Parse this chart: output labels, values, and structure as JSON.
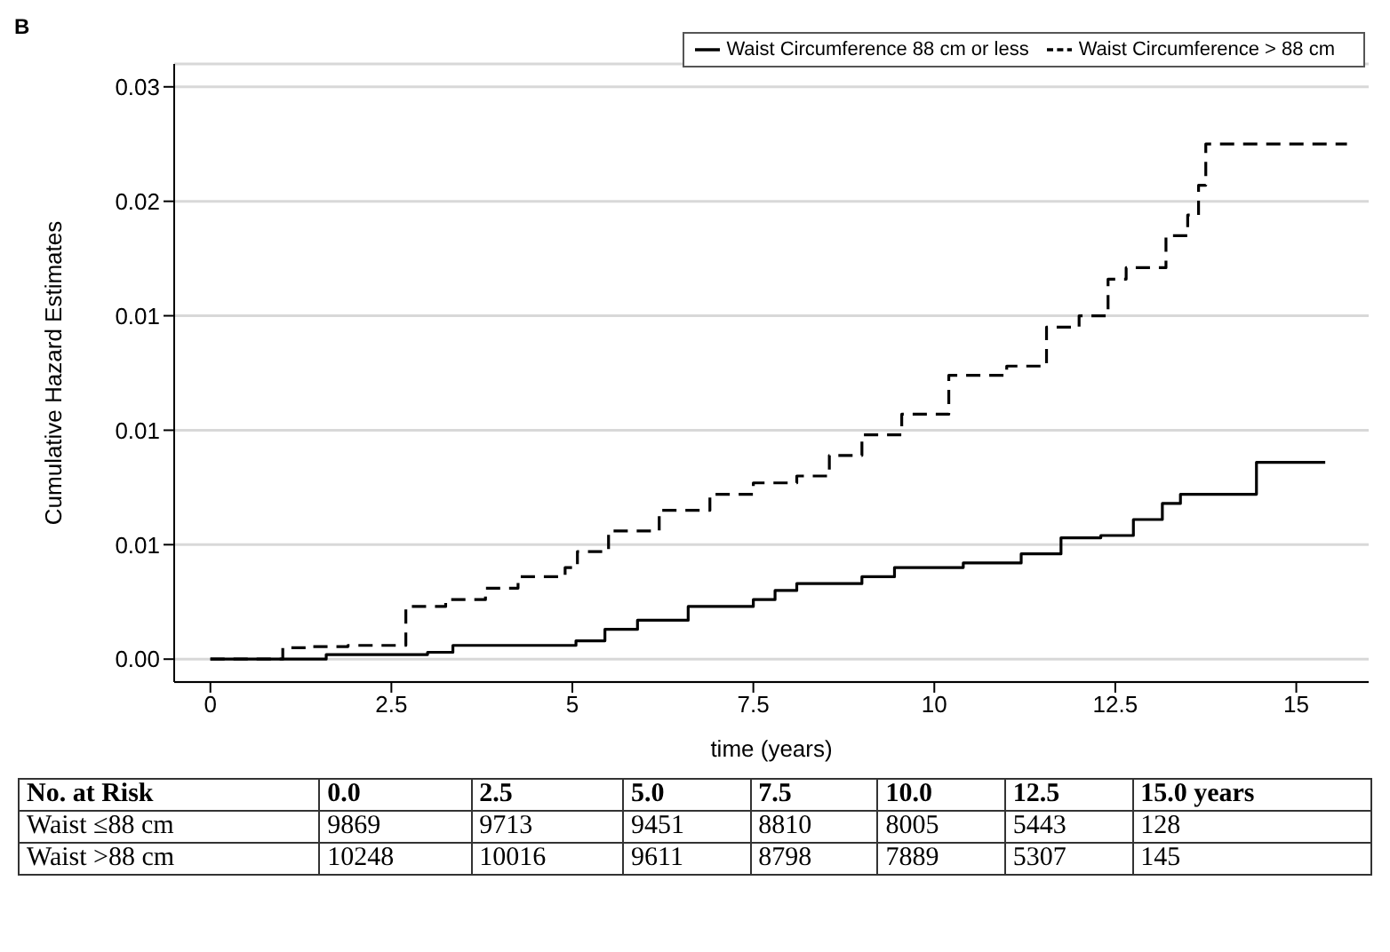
{
  "chart_data": {
    "type": "step",
    "title": "B",
    "xlabel": "time (years)",
    "ylabel": "Cumulative Hazard Estimates",
    "xlim": [
      -0.5,
      16
    ],
    "xticks": [
      0,
      2.5,
      5,
      7.5,
      10,
      12.5,
      15
    ],
    "ylim": [
      -0.001,
      0.026
    ],
    "yticks": [
      {
        "value": 0,
        "label": "0.00"
      },
      {
        "value": 0.005,
        "label": "0.01"
      },
      {
        "value": 0.01,
        "label": "0.01"
      },
      {
        "value": 0.015,
        "label": "0.01"
      },
      {
        "value": 0.02,
        "label": "0.02"
      },
      {
        "value": 0.025,
        "label": "0.03"
      }
    ],
    "grid": "y",
    "legend": "top",
    "marker": "none",
    "series": [
      {
        "name": "Waist Circumference 88 cm or less",
        "color": "#000000",
        "line_style": "solid",
        "x": [
          0,
          0.5,
          1.6,
          3.0,
          3.35,
          5.05,
          5.45,
          5.9,
          6.6,
          7.5,
          7.8,
          8.1,
          9.0,
          9.45,
          10.4,
          11.2,
          11.75,
          12.3,
          12.75,
          13.15,
          13.4,
          14.45,
          15.4
        ],
        "values": [
          0,
          0,
          0.0002,
          0.0003,
          0.0006,
          0.0008,
          0.0013,
          0.0017,
          0.0023,
          0.0026,
          0.003,
          0.0033,
          0.0036,
          0.004,
          0.0042,
          0.0046,
          0.0053,
          0.0054,
          0.0061,
          0.0068,
          0.0072,
          0.0086,
          0.0086
        ]
      },
      {
        "name": "Waist Circumference > 88 cm",
        "color": "#000000",
        "line_style": "dashed",
        "x": [
          0,
          0.5,
          1.0,
          1.4,
          1.9,
          2.7,
          3.25,
          3.8,
          4.25,
          4.9,
          5.07,
          5.5,
          6.2,
          6.9,
          7.5,
          8.1,
          8.55,
          9.0,
          9.55,
          10.2,
          11.0,
          11.55,
          12.0,
          12.4,
          12.65,
          13.2,
          13.5,
          13.65,
          13.75,
          15.7
        ],
        "values": [
          0,
          0,
          0.0005,
          0.00055,
          0.0006,
          0.0023,
          0.0026,
          0.0031,
          0.0036,
          0.004,
          0.0047,
          0.0056,
          0.0065,
          0.0072,
          0.0077,
          0.008,
          0.0089,
          0.0098,
          0.0107,
          0.0124,
          0.0128,
          0.0145,
          0.015,
          0.0166,
          0.0171,
          0.0185,
          0.0194,
          0.0207,
          0.0225,
          0.0225
        ]
      }
    ],
    "annotations": [
      "No. at Risk",
      "0.0",
      "2.5",
      "5.0",
      "7.5",
      "10.0",
      "12.5",
      "15.0 years",
      "Waist ≤88 cm",
      "9869",
      "9713",
      "9451",
      "8810",
      "8005",
      "5443",
      "128",
      "Waist >88 cm",
      "10248",
      "10016",
      "9611",
      "8798",
      "7889",
      "5307",
      "145"
    ]
  }
}
